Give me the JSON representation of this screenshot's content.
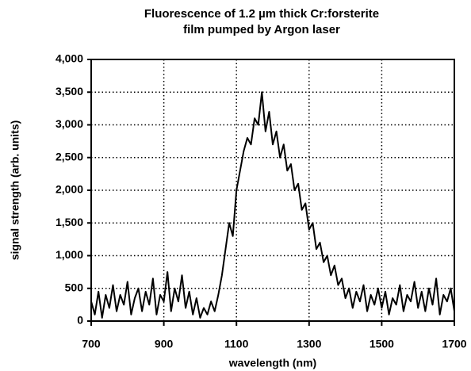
{
  "chart_data": {
    "type": "line",
    "title": [
      "Fluorescence of 1.2 µm thick Cr:forsterite",
      "film  pumped by  Argon laser"
    ],
    "xlabel": "wavelength  (nm)",
    "ylabel": "signal strength  (arb. units)",
    "xlim": [
      700,
      1700
    ],
    "xticks": [
      700,
      900,
      1100,
      1300,
      1500,
      1700
    ],
    "ylim": [
      0,
      4000
    ],
    "yticks": [
      0,
      500,
      {
        "value": 1000,
        "label": "1,000"
      },
      {
        "value": 1500,
        "label": "1,500"
      },
      {
        "value": 2000,
        "label": "2,000"
      },
      {
        "value": 2500,
        "label": "2,500"
      },
      {
        "value": 3000,
        "label": "3,000"
      },
      {
        "value": 3500,
        "label": "3,500"
      },
      {
        "value": 4000,
        "label": "4,000"
      }
    ],
    "grid": true,
    "series": [
      {
        "color": "#000000",
        "x": [
          700,
          710,
          720,
          730,
          740,
          750,
          760,
          770,
          780,
          790,
          800,
          810,
          820,
          830,
          840,
          850,
          860,
          870,
          880,
          890,
          900,
          910,
          920,
          930,
          940,
          950,
          960,
          970,
          980,
          990,
          1000,
          1010,
          1020,
          1030,
          1040,
          1050,
          1060,
          1070,
          1080,
          1090,
          1100,
          1110,
          1120,
          1130,
          1140,
          1150,
          1160,
          1170,
          1180,
          1190,
          1200,
          1210,
          1220,
          1230,
          1240,
          1250,
          1260,
          1270,
          1280,
          1290,
          1300,
          1310,
          1320,
          1330,
          1340,
          1350,
          1360,
          1370,
          1380,
          1390,
          1400,
          1410,
          1420,
          1430,
          1440,
          1450,
          1460,
          1470,
          1480,
          1490,
          1500,
          1510,
          1520,
          1530,
          1540,
          1550,
          1560,
          1570,
          1580,
          1590,
          1600,
          1610,
          1620,
          1630,
          1640,
          1650,
          1660,
          1670,
          1680,
          1690,
          1700
        ],
        "values": [
          300,
          100,
          450,
          50,
          400,
          200,
          550,
          150,
          400,
          250,
          600,
          100,
          350,
          500,
          150,
          450,
          250,
          650,
          100,
          400,
          300,
          750,
          150,
          500,
          300,
          700,
          200,
          450,
          100,
          350,
          50,
          200,
          100,
          300,
          150,
          400,
          700,
          1100,
          1500,
          1300,
          2000,
          2300,
          2600,
          2800,
          2700,
          3100,
          3000,
          3500,
          2900,
          3200,
          2700,
          2900,
          2500,
          2700,
          2300,
          2400,
          2000,
          2100,
          1700,
          1800,
          1400,
          1500,
          1100,
          1200,
          900,
          1000,
          700,
          850,
          550,
          650,
          350,
          500,
          200,
          450,
          300,
          550,
          150,
          400,
          250,
          500,
          200,
          450,
          100,
          350,
          250,
          550,
          150,
          400,
          300,
          600,
          200,
          450,
          150,
          500,
          250,
          650,
          100,
          400,
          300,
          500,
          150
        ]
      }
    ]
  }
}
